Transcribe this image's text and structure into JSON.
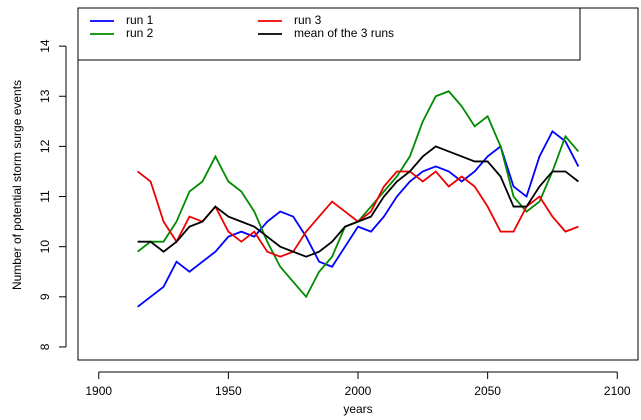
{
  "chart_data": {
    "type": "line",
    "x_label": "years",
    "y_label": "Number of potential storm surge events",
    "x": [
      1915,
      1920,
      1925,
      1930,
      1935,
      1940,
      1945,
      1950,
      1955,
      1960,
      1965,
      1970,
      1975,
      1980,
      1985,
      1990,
      1995,
      2000,
      2005,
      2010,
      2015,
      2020,
      2025,
      2030,
      2035,
      2040,
      2045,
      2050,
      2055,
      2060,
      2065,
      2070,
      2075,
      2080,
      2085
    ],
    "series": [
      {
        "name": "run 1",
        "color": "#0000ff",
        "values": [
          8.8,
          9.0,
          9.2,
          9.7,
          9.5,
          9.7,
          9.9,
          10.2,
          10.3,
          10.2,
          10.5,
          10.7,
          10.6,
          10.2,
          9.7,
          9.6,
          10.0,
          10.4,
          10.3,
          10.6,
          11.0,
          11.3,
          11.5,
          11.6,
          11.5,
          11.3,
          11.5,
          11.8,
          12.0,
          11.2,
          11.0,
          11.8,
          12.3,
          12.1,
          11.6
        ]
      },
      {
        "name": "run 2",
        "color": "#008b00",
        "values": [
          9.9,
          10.1,
          10.1,
          10.5,
          11.1,
          11.3,
          11.8,
          11.3,
          11.1,
          10.7,
          10.1,
          9.6,
          9.3,
          9.0,
          9.5,
          9.8,
          10.4,
          10.5,
          10.8,
          11.1,
          11.4,
          11.8,
          12.5,
          13.0,
          13.1,
          12.8,
          12.4,
          12.6,
          12.0,
          11.0,
          10.7,
          10.9,
          11.5,
          12.2,
          11.9
        ]
      },
      {
        "name": "run 3",
        "color": "#ee0000",
        "values": [
          11.5,
          11.3,
          10.5,
          10.1,
          10.6,
          10.5,
          10.8,
          10.3,
          10.1,
          10.3,
          9.9,
          9.8,
          9.9,
          10.3,
          10.6,
          10.9,
          10.7,
          10.5,
          10.7,
          11.2,
          11.5,
          11.5,
          11.3,
          11.5,
          11.2,
          11.4,
          11.2,
          10.8,
          10.3,
          10.3,
          10.8,
          11.0,
          10.6,
          10.3,
          10.4
        ]
      },
      {
        "name": "mean of the 3 runs",
        "color": "#000000",
        "values": [
          10.1,
          10.1,
          9.9,
          10.1,
          10.4,
          10.5,
          10.8,
          10.6,
          10.5,
          10.4,
          10.2,
          10.0,
          9.9,
          9.8,
          9.9,
          10.1,
          10.4,
          10.5,
          10.6,
          11.0,
          11.3,
          11.5,
          11.8,
          12.0,
          11.9,
          11.8,
          11.7,
          11.7,
          11.4,
          10.8,
          10.8,
          11.2,
          11.5,
          11.5,
          11.3
        ]
      }
    ],
    "xlim": [
      1892,
      2108
    ],
    "ylim": [
      7.74,
      14.76
    ],
    "xticks": [
      1900,
      1950,
      2000,
      2050,
      2100
    ],
    "yticks": [
      8,
      9,
      10,
      11,
      12,
      13,
      14
    ],
    "legend": "top-left"
  }
}
